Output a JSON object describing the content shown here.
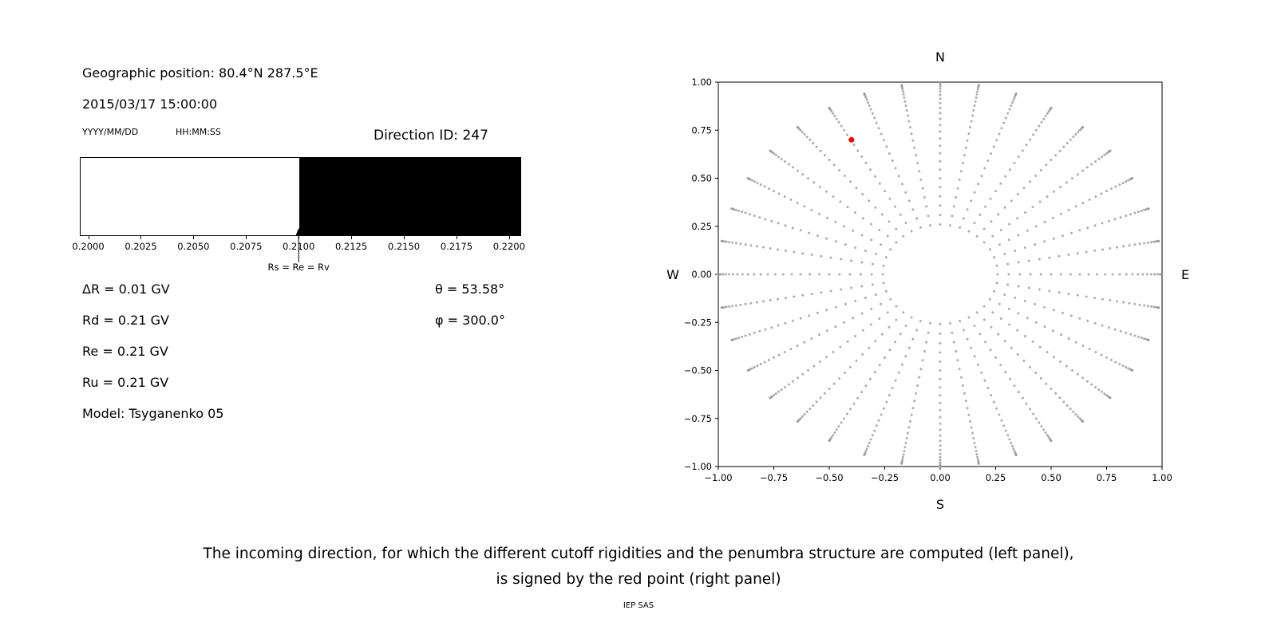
{
  "header": {
    "geo_position": "Geographic position: 80.4°N 287.5°E",
    "datetime": "2015/03/17 15:00:00",
    "date_format_label": "YYYY/MM/DD",
    "time_format_label": "HH:MM:SS",
    "direction_id": "Direction ID: 247"
  },
  "left_panel": {
    "params": [
      "ΔR = 0.01 GV",
      "Rd = 0.21 GV",
      "Re = 0.21 GV",
      "Ru = 0.21 GV",
      "Model: Tsyganenko 05"
    ],
    "theta": "θ = 53.58°",
    "phi": "φ = 300.0°"
  },
  "caption": {
    "line1": "The incoming direction, for which the different cutoff rigidities and the penumbra structure are computed (left panel),",
    "line2": "is signed by the red point (right panel)",
    "credit": "IEP SAS"
  },
  "chart_data": [
    {
      "type": "bar",
      "name": "penumbra-structure",
      "xlim": [
        0.1996,
        0.2205
      ],
      "x_ticks": [
        "0.2000",
        "0.2025",
        "0.2050",
        "0.2075",
        "0.2100",
        "0.2125",
        "0.2150",
        "0.2175",
        "0.2200"
      ],
      "segments": [
        {
          "from": 0.1996,
          "to": 0.21,
          "color": "#ffffff"
        },
        {
          "from": 0.21,
          "to": 0.2205,
          "color": "#000000"
        }
      ],
      "marker": {
        "value": 0.21,
        "label": "Rs = Re = Rv"
      }
    },
    {
      "type": "scatter",
      "name": "incoming-direction-map",
      "xlim": [
        -1,
        1
      ],
      "ylim": [
        -1,
        1
      ],
      "x_tick_values": [
        -1,
        -0.75,
        -0.5,
        -0.25,
        0,
        0.25,
        0.5,
        0.75,
        1
      ],
      "x_tick_labels": [
        "−1.00",
        "−0.75",
        "−0.50",
        "−0.25",
        "0.00",
        "0.25",
        "0.50",
        "0.75",
        "1.00"
      ],
      "y_tick_values": [
        1,
        0.75,
        0.5,
        0.25,
        0,
        -0.25,
        -0.5,
        -0.75,
        -1
      ],
      "y_tick_labels": [
        "1.00",
        "0.75",
        "0.50",
        "0.25",
        "0.00",
        "−0.25",
        "−0.50",
        "−0.75",
        "−1.00"
      ],
      "compass": {
        "top": "N",
        "bottom": "S",
        "left": "W",
        "right": "E"
      },
      "grid": {
        "azimuth_step_deg": 10,
        "zenith_min_deg": 15,
        "zenith_max_deg": 90,
        "zenith_step_deg": 3,
        "projection": "r = sin(zenith)",
        "dot_color": "#999999"
      },
      "highlight_point": {
        "x": -0.4,
        "y": 0.7,
        "color": "#ff0000"
      }
    }
  ]
}
